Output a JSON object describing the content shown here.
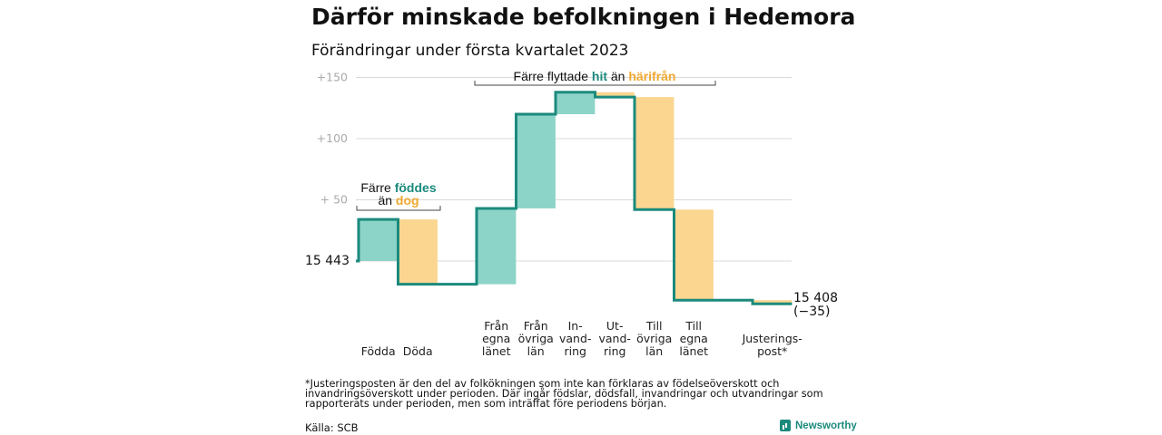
{
  "title": "Därför minskade befolkningen i Hedemora",
  "subtitle": "Förändringar under första kvartalet 2023",
  "note": "*Justeringsposten är den del av folkökningen som inte kan förklaras av födelseöverskott och invandringsöverskott under perioden. Där ingår födslar, dödsfall, invandringar och utvandringar som rapporterats under perioden, men som inträffat före periodens början.",
  "source": "Källa: SCB",
  "brand": "Newsworthy",
  "colors": {
    "positive": "#8dd4c8",
    "negative": "#fad690",
    "line": "#1b8a7d",
    "teal_text": "#1b8a7d",
    "orange_text": "#f0a830",
    "grid": "#d9d9d9",
    "tick": "#aaaaaa"
  },
  "annotations": {
    "births": {
      "line1_pre": "Färre ",
      "line1_hl": "föddes",
      "line2_pre": "än ",
      "line2_hl": "dog"
    },
    "moves": {
      "pre": "Färre flyttade ",
      "hl1": "hit",
      "mid": " än ",
      "hl2": "härifrån"
    }
  },
  "chart_data": {
    "type": "waterfall",
    "start_label": "15 443",
    "end_label_line1": "15 408",
    "end_label_line2": "(−35)",
    "y_ticks": [
      {
        "value": 150,
        "label": "+150"
      },
      {
        "value": 100,
        "label": "+100"
      },
      {
        "value": 50,
        "label": "+ 50"
      }
    ],
    "ylim": [
      -35,
      155
    ],
    "steps": [
      {
        "label_lines": [
          "Födda"
        ],
        "value": 34,
        "kind": "positive"
      },
      {
        "label_lines": [
          "Döda"
        ],
        "value": -53,
        "kind": "negative"
      },
      {
        "label_lines": [
          "Från",
          "egna",
          "länet"
        ],
        "value": 62,
        "kind": "positive"
      },
      {
        "label_lines": [
          "Från",
          "övriga",
          "län"
        ],
        "value": 77,
        "kind": "positive"
      },
      {
        "label_lines": [
          "In-",
          "vand-",
          "ring"
        ],
        "value": 18,
        "kind": "positive"
      },
      {
        "label_lines": [
          "Ut-",
          "vand-",
          "ring"
        ],
        "value": -4,
        "kind": "negative"
      },
      {
        "label_lines": [
          "Till",
          "övriga",
          "län"
        ],
        "value": -92,
        "kind": "negative"
      },
      {
        "label_lines": [
          "Till",
          "egna",
          "länet"
        ],
        "value": -74,
        "kind": "negative"
      },
      {
        "label_lines": [
          "Justerings-",
          "post*"
        ],
        "value": -3,
        "kind": "negative"
      }
    ]
  }
}
